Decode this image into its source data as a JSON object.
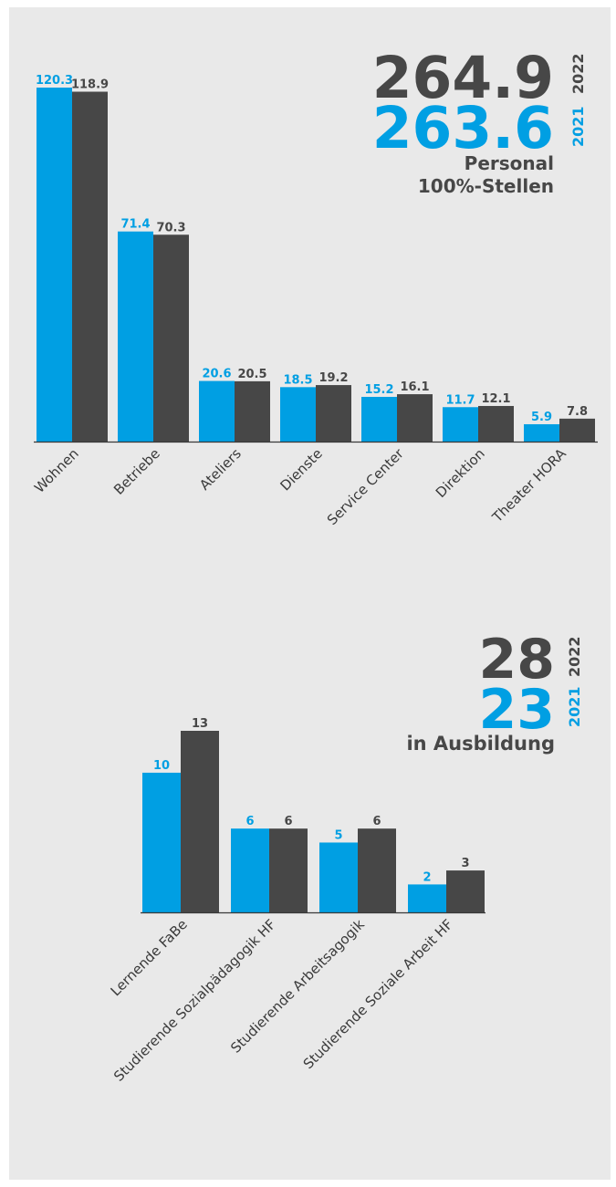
{
  "colors": {
    "series_2021": "#009fe3",
    "series_2022": "#474747",
    "background": "#e9e9e9",
    "axis_label": "#3a3a3a"
  },
  "personal": {
    "total_2022": "264.9",
    "year_2022": "2022",
    "total_2021": "263.6",
    "year_2021": "2021",
    "label_line1": "Personal",
    "label_line2": "100%-Stellen"
  },
  "ausbildung": {
    "total_2022": "28",
    "year_2022": "2022",
    "total_2021": "23",
    "year_2021": "2021",
    "label": "in Ausbildung"
  },
  "chart_data": [
    {
      "type": "bar",
      "categories": [
        "Wohnen",
        "Betriebe",
        "Ateliers",
        "Dienste",
        "Service Center",
        "Direktion",
        "Theater HORA"
      ],
      "series": [
        {
          "name": "2021",
          "values": [
            120.3,
            71.4,
            20.6,
            18.5,
            15.2,
            11.7,
            5.9
          ],
          "labels": [
            "120.3",
            "71.4",
            "20.6",
            "18.5",
            "15.2",
            "11.7",
            "5.9"
          ]
        },
        {
          "name": "2022",
          "values": [
            118.9,
            70.3,
            20.5,
            19.2,
            16.1,
            12.1,
            7.8
          ],
          "labels": [
            "118.9",
            "70.3",
            "20.5",
            "19.2",
            "16.1",
            "12.1",
            "7.8"
          ]
        }
      ],
      "ylim": [
        0,
        120.3
      ]
    },
    {
      "type": "bar",
      "categories": [
        "Lernende FaBe",
        "Studierende Sozialpädagogik HF",
        "Studierende Arbeitsagogik",
        "Studierende Soziale Arbeit HF"
      ],
      "series": [
        {
          "name": "2021",
          "values": [
            10,
            6,
            5,
            2
          ],
          "labels": [
            "10",
            "6",
            "5",
            "2"
          ]
        },
        {
          "name": "2022",
          "values": [
            13,
            6,
            6,
            3
          ],
          "labels": [
            "13",
            "6",
            "6",
            "3"
          ]
        }
      ],
      "ylim": [
        0,
        13
      ]
    }
  ]
}
